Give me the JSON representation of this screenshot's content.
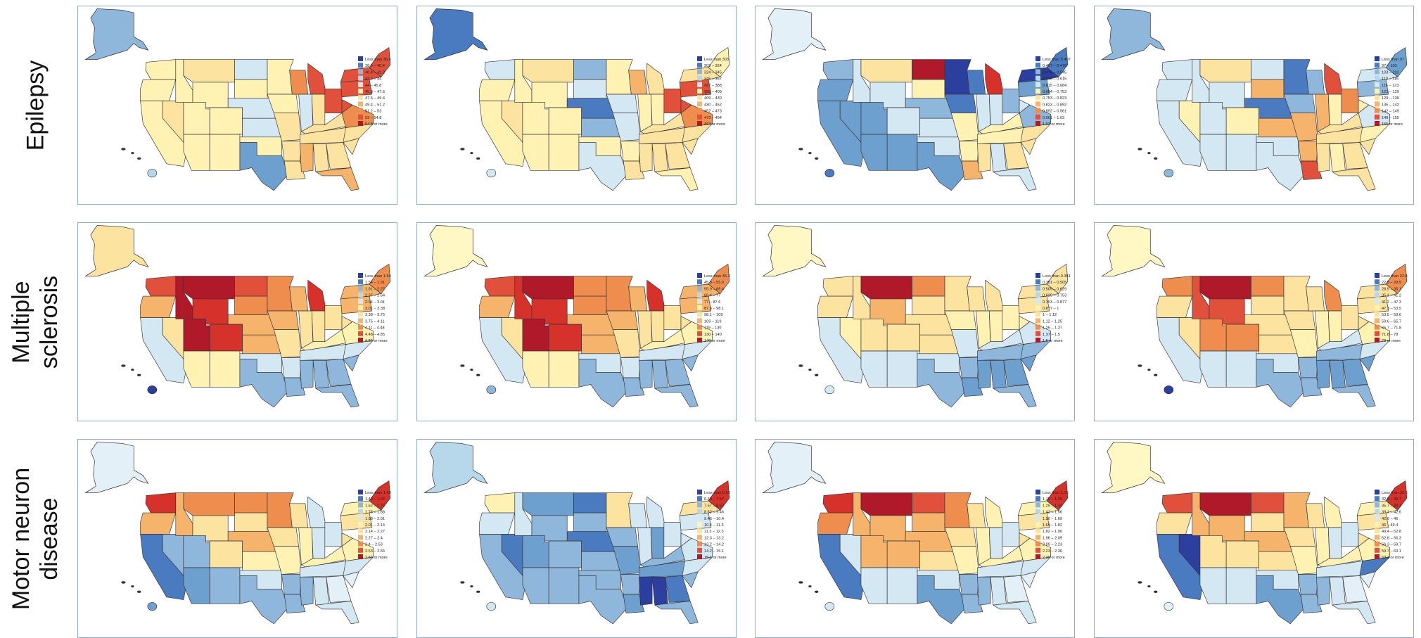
{
  "row_labels": [
    {
      "lines": [
        "Epilepsy",
        ""
      ]
    },
    {
      "lines": [
        "Multiple",
        "sclerosis"
      ]
    },
    {
      "lines": [
        "Motor neuron",
        "disease"
      ]
    }
  ],
  "maps": [
    [
      {
        "legend": [
          "Less than 38.6",
          "38.6 – 40.4",
          "40.4 – 42.2",
          "42.2 – 44",
          "44 – 45.8",
          "45.8 – 47.6",
          "47.6 – 49.4",
          "49.4 – 51.2",
          "51.2 – 53",
          "53 – 54.8",
          "54.8 or more"
        ],
        "alaska_color": "#8fb7dc",
        "hawaii_color": "#b7d7ea",
        "state_fills": {
          "WA": "#fff2b3",
          "OR": "#fff2b3",
          "CA": "#fff2b3",
          "NV": "#fde3a0",
          "ID": "#fff2b3",
          "MT": "#fde3a0",
          "WY": "#fff2b3",
          "UT": "#fff2b3",
          "AZ": "#fff2b3",
          "CO": "#fff2b3",
          "NM": "#fff2b3",
          "ND": "#d3e8f2",
          "SD": "#fff2b3",
          "NE": "#d3e8f2",
          "KS": "#d3e8f2",
          "OK": "#fff2b3",
          "TX": "#6d9fcf",
          "MN": "#fff2b3",
          "IA": "#fff2b3",
          "MO": "#fde3a0",
          "AR": "#fde3a0",
          "LA": "#fde3a0",
          "WI": "#ef8d4e",
          "MI": "#e0503a",
          "IL": "#d3e8f2",
          "IN": "#fde3a0",
          "OH": "#e0503a",
          "KY": "#fde3a0",
          "TN": "#fde3a0",
          "MS": "#f6b36b",
          "AL": "#fde3a0",
          "GA": "#fde3a0",
          "FL": "#f6b36b",
          "SC": "#fde3a0",
          "NC": "#fde3a0",
          "VA": "#ef8d4e",
          "WV": "#e0503a",
          "PA": "#e0503a",
          "NY": "#e0503a",
          "NE_REG": "#e0503a"
        }
      },
      {
        "legend": [
          "Less than 303",
          "303 – 324",
          "324 – 345",
          "345 – 367",
          "367 – 388",
          "388 – 409",
          "409 – 430",
          "430 – 452",
          "452 – 473",
          "473 – 494",
          "494 or more"
        ],
        "alaska_color": "#4a7bc0",
        "hawaii_color": "#d3e8f2",
        "state_fills": {
          "WA": "#d3e8f2",
          "OR": "#fff2b3",
          "CA": "#fff2b3",
          "NV": "#fde3a0",
          "ID": "#fff2b3",
          "MT": "#fde3a0",
          "WY": "#fff2b3",
          "UT": "#fff2b3",
          "AZ": "#fff2b3",
          "CO": "#fff2b3",
          "NM": "#fff2b3",
          "ND": "#8fb7dc",
          "SD": "#d3e8f2",
          "NE": "#4a7bc0",
          "KS": "#8fb7dc",
          "OK": "#fff2b3",
          "TX": "#d3e8f2",
          "MN": "#fff2b3",
          "IA": "#d3e8f2",
          "MO": "#d3e8f2",
          "AR": "#fff2b3",
          "LA": "#fde3a0",
          "WI": "#f6b36b",
          "MI": "#fde3a0",
          "IL": "#fff2b3",
          "IN": "#fff2b3",
          "OH": "#e0503a",
          "KY": "#fde3a0",
          "TN": "#fde3a0",
          "MS": "#fde3a0",
          "AL": "#fde3a0",
          "GA": "#fde3a0",
          "FL": "#fff2b3",
          "SC": "#fde3a0",
          "NC": "#fde3a0",
          "VA": "#ef8d4e",
          "WV": "#e0503a",
          "PA": "#e0503a",
          "NY": "#fde3a0",
          "NE_REG": "#fff2b3"
        }
      },
      {
        "legend": [
          "Less than 0.407",
          "0.407 – 0.476",
          "0.476 – 0.545",
          "0.545 – 0.615",
          "0.615 – 0.684",
          "0.684 – 0.753",
          "0.753 – 0.823",
          "0.823 – 0.892",
          "0.892 – 0.961",
          "0.961 – 1.03",
          "1.03 or more"
        ],
        "alaska_color": "#e3f0f7",
        "hawaii_color": "#4a7bc0",
        "state_fills": {
          "WA": "#8fb7dc",
          "OR": "#6d9fcf",
          "CA": "#6d9fcf",
          "NV": "#6d9fcf",
          "ID": "#d3e8f2",
          "MT": "#fde3a0",
          "WY": "#d3e8f2",
          "UT": "#6d9fcf",
          "AZ": "#6d9fcf",
          "CO": "#d3e8f2",
          "NM": "#6d9fcf",
          "ND": "#b0192a",
          "SD": "#fff2b3",
          "NE": "#8fb7dc",
          "KS": "#d3e8f2",
          "OK": "#d3e8f2",
          "TX": "#6d9fcf",
          "MN": "#2c3f9e",
          "IA": "#4a7bc0",
          "MO": "#fff2b3",
          "AR": "#fff2b3",
          "LA": "#f6b36b",
          "WI": "#4a7bc0",
          "MI": "#d6322b",
          "IL": "#d3e8f2",
          "IN": "#d3e8f2",
          "OH": "#8fb7dc",
          "KY": "#fff2b3",
          "TN": "#fff2b3",
          "MS": "#fde3a0",
          "AL": "#d3e8f2",
          "GA": "#fde3a0",
          "FL": "#d3e8f2",
          "SC": "#fde3a0",
          "NC": "#fde3a0",
          "VA": "#8fb7dc",
          "WV": "#d3e8f2",
          "PA": "#6d9fcf",
          "NY": "#2c3f9e",
          "NE_REG": "#4a7bc0"
        }
      },
      {
        "legend": [
          "Less than 97",
          "97 – 103",
          "103 – 110",
          "110 – 116",
          "116 – 123",
          "123 – 129",
          "129 – 136",
          "136 – 142",
          "142 – 149",
          "149 – 155",
          "155 or more"
        ],
        "alaska_color": "#8fb7dc",
        "hawaii_color": "#8fb7dc",
        "state_fills": {
          "WA": "#d3e8f2",
          "OR": "#d3e8f2",
          "CA": "#d3e8f2",
          "NV": "#fff2b3",
          "ID": "#d3e8f2",
          "MT": "#fde3a0",
          "WY": "#d3e8f2",
          "UT": "#d3e8f2",
          "AZ": "#d3e8f2",
          "CO": "#fff2b3",
          "NM": "#d3e8f2",
          "ND": "#d3e8f2",
          "SD": "#f6b36b",
          "NE": "#4a7bc0",
          "KS": "#f6b36b",
          "OK": "#d3e8f2",
          "TX": "#d3e8f2",
          "MN": "#4a7bc0",
          "IA": "#8fb7dc",
          "MO": "#f6b36b",
          "AR": "#f6b36b",
          "LA": "#e0503a",
          "WI": "#8fb7dc",
          "MI": "#e0503a",
          "IL": "#f6b36b",
          "IN": "#fff2b3",
          "OH": "#ef8d4e",
          "KY": "#fde3a0",
          "TN": "#fde3a0",
          "MS": "#fde3a0",
          "AL": "#fff2b3",
          "GA": "#fde3a0",
          "FL": "#fde3a0",
          "SC": "#fde3a0",
          "NC": "#fff2b3",
          "VA": "#d3e8f2",
          "WV": "#fff2b3",
          "PA": "#8fb7dc",
          "NY": "#d3e8f2",
          "NE_REG": "#6d9fcf"
        }
      }
    ],
    [
      {
        "legend": [
          "Less than 1.54",
          "1.54 – 1.91",
          "1.91 – 2.27",
          "2.27 – 2.64",
          "2.64 – 3.01",
          "3.01 – 3.38",
          "3.38 – 3.75",
          "3.75 – 4.11",
          "4.11 – 4.48",
          "4.48 – 4.85",
          "4.85 or more"
        ],
        "alaska_color": "#fde3a0",
        "hawaii_color": "#2c3f9e",
        "state_fills": {
          "WA": "#e0503a",
          "OR": "#f6b36b",
          "CA": "#d3e8f2",
          "NV": "#fde3a0",
          "ID": "#b0192a",
          "MT": "#b0192a",
          "WY": "#d6322b",
          "UT": "#b0192a",
          "AZ": "#fff2b3",
          "CO": "#d6322b",
          "NM": "#fff2b3",
          "ND": "#e0503a",
          "SD": "#ef8d4e",
          "NE": "#f6b36b",
          "KS": "#f6b36b",
          "OK": "#d3e8f2",
          "TX": "#8fb7dc",
          "MN": "#ef8d4e",
          "IA": "#f6b36b",
          "MO": "#fde3a0",
          "AR": "#d3e8f2",
          "LA": "#8fb7dc",
          "WI": "#f6b36b",
          "MI": "#d6322b",
          "IL": "#fde3a0",
          "IN": "#fde3a0",
          "OH": "#fde3a0",
          "KY": "#fff2b3",
          "TN": "#d3e8f2",
          "MS": "#8fb7dc",
          "AL": "#8fb7dc",
          "GA": "#8fb7dc",
          "FL": "#8fb7dc",
          "SC": "#8fb7dc",
          "NC": "#d3e8f2",
          "VA": "#fff2b3",
          "WV": "#fde3a0",
          "PA": "#f6b36b",
          "NY": "#f6b36b",
          "NE_REG": "#ef8d4e"
        }
      },
      {
        "legend": [
          "Less than 45.3",
          "45.3 – 55.9",
          "55.9 – 66.4",
          "66.4 – 77",
          "77 – 87.6",
          "87.6 – 98.1",
          "98.1 – 109",
          "109 – 119",
          "119 – 130",
          "130 – 140",
          "140 or more"
        ],
        "alaska_color": "#fff7c4",
        "hawaii_color": "#8fb7dc",
        "state_fills": {
          "WA": "#e0503a",
          "OR": "#f6b36b",
          "CA": "#d3e8f2",
          "NV": "#fde3a0",
          "ID": "#d6322b",
          "MT": "#b0192a",
          "WY": "#d6322b",
          "UT": "#b0192a",
          "AZ": "#fff2b3",
          "CO": "#d6322b",
          "NM": "#fff2b3",
          "ND": "#ef8d4e",
          "SD": "#ef8d4e",
          "NE": "#f6b36b",
          "KS": "#f6b36b",
          "OK": "#d3e8f2",
          "TX": "#8fb7dc",
          "MN": "#ef8d4e",
          "IA": "#f6b36b",
          "MO": "#fde3a0",
          "AR": "#d3e8f2",
          "LA": "#8fb7dc",
          "WI": "#f6b36b",
          "MI": "#d6322b",
          "IL": "#fde3a0",
          "IN": "#fde3a0",
          "OH": "#fde3a0",
          "KY": "#fff2b3",
          "TN": "#d3e8f2",
          "MS": "#8fb7dc",
          "AL": "#8fb7dc",
          "GA": "#8fb7dc",
          "FL": "#8fb7dc",
          "SC": "#8fb7dc",
          "NC": "#d3e8f2",
          "VA": "#fff2b3",
          "WV": "#fde3a0",
          "PA": "#f6b36b",
          "NY": "#f6b36b",
          "NE_REG": "#ef8d4e"
        }
      },
      {
        "legend": [
          "Less than 0.381",
          "0.381 – 0.505",
          "0.505 – 0.629",
          "0.629 – 0.753",
          "0.753 – 0.877",
          "0.877 – 1",
          "1 – 1.12",
          "1.12 – 1.25",
          "1.25 – 1.37",
          "1.37 – 1.5",
          "1.5 or more"
        ],
        "alaska_color": "#fff7c4",
        "hawaii_color": "#d3e8f2",
        "state_fills": {
          "WA": "#fde3a0",
          "OR": "#fde3a0",
          "CA": "#d3e8f2",
          "NV": "#fff2b3",
          "ID": "#fde3a0",
          "MT": "#b0192a",
          "WY": "#f6b36b",
          "UT": "#fde3a0",
          "AZ": "#d3e8f2",
          "CO": "#fde3a0",
          "NM": "#d3e8f2",
          "ND": "#ef8d4e",
          "SD": "#fde3a0",
          "NE": "#fde3a0",
          "KS": "#fde3a0",
          "OK": "#d3e8f2",
          "TX": "#8fb7dc",
          "MN": "#fde3a0",
          "IA": "#fff2b3",
          "MO": "#d3e8f2",
          "AR": "#8fb7dc",
          "LA": "#6d9fcf",
          "WI": "#fde3a0",
          "MI": "#fde3a0",
          "IL": "#fff2b3",
          "IN": "#fff2b3",
          "OH": "#fff2b3",
          "KY": "#d3e8f2",
          "TN": "#8fb7dc",
          "MS": "#6d9fcf",
          "AL": "#6d9fcf",
          "GA": "#6d9fcf",
          "FL": "#8fb7dc",
          "SC": "#6d9fcf",
          "NC": "#8fb7dc",
          "VA": "#d3e8f2",
          "WV": "#fff2b3",
          "PA": "#fde3a0",
          "NY": "#fde3a0",
          "NE_REG": "#fde3a0"
        }
      },
      {
        "legend": [
          "Less than 22.8",
          "22.8 – 28.9",
          "28.9 – 35.1",
          "35.1 – 41.2",
          "41.2 – 47.3",
          "47.3 – 53.5",
          "53.5 – 59.6",
          "59.6 – 65.7",
          "65.7 – 71.8",
          "71.8 – 78",
          "78 or more"
        ],
        "alaska_color": "#fff7c4",
        "hawaii_color": "#2c3f9e",
        "state_fills": {
          "WA": "#ef8d4e",
          "OR": "#fde3a0",
          "CA": "#d3e8f2",
          "NV": "#fde3a0",
          "ID": "#e0503a",
          "MT": "#b0192a",
          "WY": "#e0503a",
          "UT": "#ef8d4e",
          "AZ": "#d3e8f2",
          "CO": "#ef8d4e",
          "NM": "#d3e8f2",
          "ND": "#ef8d4e",
          "SD": "#fde3a0",
          "NE": "#fde3a0",
          "KS": "#fde3a0",
          "OK": "#d3e8f2",
          "TX": "#8fb7dc",
          "MN": "#fde3a0",
          "IA": "#fde3a0",
          "MO": "#fff2b3",
          "AR": "#8fb7dc",
          "LA": "#8fb7dc",
          "WI": "#fde3a0",
          "MI": "#ef8d4e",
          "IL": "#fff2b3",
          "IN": "#fff2b3",
          "OH": "#fde3a0",
          "KY": "#d3e8f2",
          "TN": "#8fb7dc",
          "MS": "#6d9fcf",
          "AL": "#6d9fcf",
          "GA": "#6d9fcf",
          "FL": "#8fb7dc",
          "SC": "#6d9fcf",
          "NC": "#d3e8f2",
          "VA": "#fff2b3",
          "WV": "#fde3a0",
          "PA": "#fde3a0",
          "NY": "#fde3a0",
          "NE_REG": "#ef8d4e"
        }
      }
    ],
    [
      {
        "legend": [
          "Less than 1.49",
          "1.49 – 1.62",
          "1.62 – 1.75",
          "1.75 – 1.88",
          "1.88 – 2.01",
          "2.01 – 2.14",
          "2.14 – 2.27",
          "2.27 – 2.4",
          "2.4 – 2.53",
          "2.53 – 2.66",
          "2.66 or more"
        ],
        "alaska_color": "#e3f0f7",
        "hawaii_color": "#6d9fcf",
        "state_fills": {
          "WA": "#d6322b",
          "OR": "#f6b36b",
          "CA": "#4a7bc0",
          "NV": "#8fb7dc",
          "ID": "#f6b36b",
          "MT": "#ef8d4e",
          "WY": "#fde3a0",
          "UT": "#8fb7dc",
          "AZ": "#6d9fcf",
          "CO": "#fde3a0",
          "NM": "#8fb7dc",
          "ND": "#ef8d4e",
          "SD": "#fde3a0",
          "NE": "#f6b36b",
          "KS": "#fff2b3",
          "OK": "#d3e8f2",
          "TX": "#8fb7dc",
          "MN": "#ef8d4e",
          "IA": "#fde3a0",
          "MO": "#fff2b3",
          "AR": "#8fb7dc",
          "LA": "#8fb7dc",
          "WI": "#fde3a0",
          "MI": "#d3e8f2",
          "IL": "#fff2b3",
          "IN": "#d3e8f2",
          "OH": "#d3e8f2",
          "KY": "#fff2b3",
          "TN": "#d3e8f2",
          "MS": "#8fb7dc",
          "AL": "#d3e8f2",
          "GA": "#e3f0f7",
          "FL": "#d3e8f2",
          "SC": "#e3f0f7",
          "NC": "#d3e8f2",
          "VA": "#fff2b3",
          "WV": "#fde3a0",
          "PA": "#fde3a0",
          "NY": "#fff2b3",
          "NE_REG": "#d6322b"
        }
      },
      {
        "legend": [
          "Less than 6.63",
          "6.63 – 7.57",
          "7.57 – 8.52",
          "8.52 – 9.46",
          "9.46 – 10.4",
          "10.4 – 11.3",
          "11.3 – 12.3",
          "12.3 – 13.2",
          "13.2 – 14.2",
          "14.2 – 15.1",
          "15.1 or more"
        ],
        "alaska_color": "#b7d7ea",
        "hawaii_color": "#d3e8f2",
        "state_fills": {
          "WA": "#fff2b3",
          "OR": "#d3e8f2",
          "CA": "#8fb7dc",
          "NV": "#4a7bc0",
          "ID": "#d3e8f2",
          "MT": "#6d9fcf",
          "WY": "#8fb7dc",
          "UT": "#6d9fcf",
          "AZ": "#8fb7dc",
          "CO": "#8fb7dc",
          "NM": "#8fb7dc",
          "ND": "#4a7bc0",
          "SD": "#8fb7dc",
          "NE": "#4a7bc0",
          "KS": "#8fb7dc",
          "OK": "#8fb7dc",
          "TX": "#8fb7dc",
          "MN": "#fde3a0",
          "IA": "#8fb7dc",
          "MO": "#6d9fcf",
          "AR": "#8fb7dc",
          "LA": "#6d9fcf",
          "WI": "#d3e8f2",
          "MI": "#d3e8f2",
          "IL": "#d3e8f2",
          "IN": "#6d9fcf",
          "OH": "#d3e8f2",
          "KY": "#8fb7dc",
          "TN": "#6d9fcf",
          "MS": "#2c3f9e",
          "AL": "#2c3f9e",
          "GA": "#4a7bc0",
          "FL": "#8fb7dc",
          "SC": "#8fb7dc",
          "NC": "#d3e8f2",
          "VA": "#d3e8f2",
          "WV": "#d3e8f2",
          "PA": "#d3e8f2",
          "NY": "#fde3a0",
          "NE_REG": "#d6322b"
        }
      },
      {
        "legend": [
          "Less than 1.15",
          "1.15 – 1.29",
          "1.29 – 1.42",
          "1.42 – 1.56",
          "1.56 – 1.69",
          "1.69 – 1.82",
          "1.82 – 1.96",
          "1.96 – 2.09",
          "2.09 – 2.23",
          "2.23 – 2.36",
          "2.36 or more"
        ],
        "alaska_color": "#e3f0f7",
        "hawaii_color": "#d3e8f2",
        "state_fills": {
          "WA": "#d6322b",
          "OR": "#ef8d4e",
          "CA": "#4a7bc0",
          "NV": "#d3e8f2",
          "ID": "#f6b36b",
          "MT": "#b0192a",
          "WY": "#f6b36b",
          "UT": "#f6b36b",
          "AZ": "#d3e8f2",
          "CO": "#f6b36b",
          "NM": "#d3e8f2",
          "ND": "#e0503a",
          "SD": "#f6b36b",
          "NE": "#f6b36b",
          "KS": "#fde3a0",
          "OK": "#d3e8f2",
          "TX": "#6d9fcf",
          "MN": "#ef8d4e",
          "IA": "#fde3a0",
          "MO": "#fff2b3",
          "AR": "#8fb7dc",
          "LA": "#8fb7dc",
          "WI": "#fde3a0",
          "MI": "#fff2b3",
          "IL": "#fff2b3",
          "IN": "#d3e8f2",
          "OH": "#d3e8f2",
          "KY": "#fff2b3",
          "TN": "#d3e8f2",
          "MS": "#8fb7dc",
          "AL": "#d3e8f2",
          "GA": "#e3f0f7",
          "FL": "#d3e8f2",
          "SC": "#e3f0f7",
          "NC": "#d3e8f2",
          "VA": "#fff2b3",
          "WV": "#fde3a0",
          "PA": "#fde3a0",
          "NY": "#fff2b3",
          "NE_REG": "#d6322b"
        }
      },
      {
        "legend": [
          "Less than 32.3",
          "32.3 – 35.7",
          "35.7 – 39.1",
          "39.1 – 42.6",
          "42.6 – 46",
          "46 – 49.4",
          "49.4 – 52.8",
          "52.8 – 56.3",
          "56.3 – 59.7",
          "59.7 – 63.1",
          "63.1 or more"
        ],
        "alaska_color": "#fff7c4",
        "hawaii_color": "#e3f0f7",
        "state_fills": {
          "WA": "#e0503a",
          "OR": "#fde3a0",
          "CA": "#4a7bc0",
          "NV": "#2c3f9e",
          "ID": "#f6b36b",
          "MT": "#b0192a",
          "WY": "#f6b36b",
          "UT": "#fde3a0",
          "AZ": "#d3e8f2",
          "CO": "#fde3a0",
          "NM": "#d3e8f2",
          "ND": "#e0503a",
          "SD": "#fde3a0",
          "NE": "#f6b36b",
          "KS": "#fde3a0",
          "OK": "#d3e8f2",
          "TX": "#6d9fcf",
          "MN": "#f6b36b",
          "IA": "#fde3a0",
          "MO": "#fff2b3",
          "AR": "#8fb7dc",
          "LA": "#8fb7dc",
          "WI": "#fde3a0",
          "MI": "#fff2b3",
          "IL": "#fff2b3",
          "IN": "#d3e8f2",
          "OH": "#d3e8f2",
          "KY": "#fff2b3",
          "TN": "#d3e8f2",
          "MS": "#8fb7dc",
          "AL": "#d3e8f2",
          "GA": "#e3f0f7",
          "FL": "#d3e8f2",
          "SC": "#e3f0f7",
          "NC": "#4a7bc0",
          "VA": "#fff2b3",
          "WV": "#fde3a0",
          "PA": "#fde3a0",
          "NY": "#fff2b3",
          "NE_REG": "#d6322b"
        }
      }
    ]
  ],
  "scale_colors": [
    "#2c3f9e",
    "#4a7bc0",
    "#8fb7dc",
    "#b7d7ea",
    "#d3e8f2",
    "#fff2b3",
    "#fde3a0",
    "#f6b36b",
    "#ef8d4e",
    "#e0503a",
    "#b0192a"
  ]
}
